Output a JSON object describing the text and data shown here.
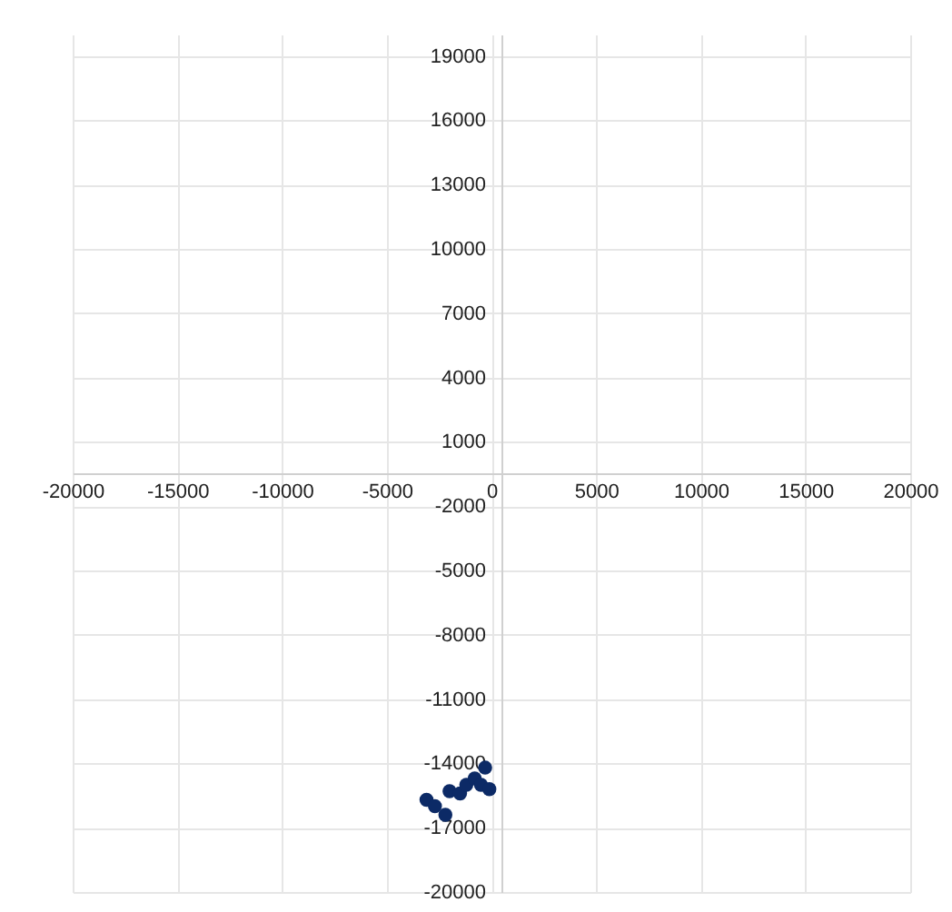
{
  "chart_data": {
    "type": "scatter",
    "x": [
      -3100,
      -2700,
      -2200,
      -2000,
      -1500,
      -1200,
      -800,
      -500,
      -300,
      -100
    ],
    "values": [
      -15700,
      -16000,
      -16400,
      -15300,
      -15400,
      -15000,
      -14700,
      -15000,
      -14200,
      -15200
    ],
    "color": "#0c2a66",
    "marker": "circle",
    "xlim": [
      -20000,
      20000
    ],
    "xticks": [
      -20000,
      -15000,
      -10000,
      -5000,
      0,
      5000,
      10000,
      15000,
      20000
    ],
    "ylim": [
      -20000,
      20000
    ],
    "yticks": [
      -20000,
      -17000,
      -14000,
      -11000,
      -8000,
      -5000,
      -2000,
      1000,
      4000,
      7000,
      10000,
      13000,
      16000,
      19000
    ],
    "grid": true
  }
}
